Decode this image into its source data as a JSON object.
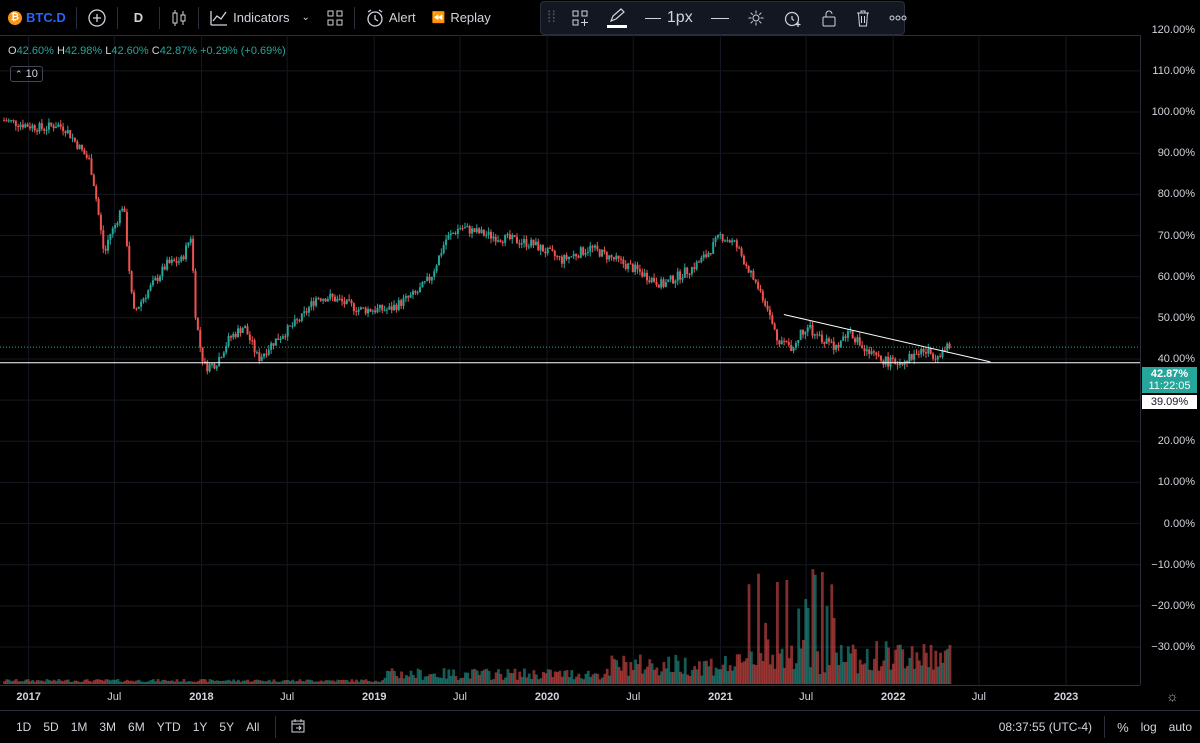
{
  "toolbar": {
    "symbol": "BTC.D",
    "symbol_icon": "bitcoin-icon",
    "add_symbol_icon": "plus-circle-icon",
    "interval": "D",
    "chart_type_icon": "candles-icon",
    "indicators_label": "Indicators",
    "layouts_icon": "grid-icon",
    "alert_label": "Alert",
    "replay_label": "Replay"
  },
  "drawing_toolbar": {
    "line_width_label": "1px"
  },
  "legend": {
    "o_label": "O",
    "o_value": "42.60%",
    "h_label": "H",
    "h_value": "42.98%",
    "l_label": "L",
    "l_value": "42.60%",
    "c_label": "C",
    "c_value": "42.87%",
    "change": "+0.29% (+0.69%)",
    "volume_badge": "10"
  },
  "price_axis": {
    "ticks": [
      "120.00%",
      "110.00%",
      "100.00%",
      "90.00%",
      "80.00%",
      "70.00%",
      "60.00%",
      "50.00%",
      "40.00%",
      "30.00%",
      "20.00%",
      "10.00%",
      "0.00%",
      "−10.00%",
      "−20.00%",
      "−30.00%"
    ],
    "current_price": "42.87%",
    "countdown": "11:22:05",
    "horizontal_line_price": "39.09%"
  },
  "time_axis": {
    "ticks": [
      "2017",
      "Jul",
      "2018",
      "Jul",
      "2019",
      "Jul",
      "2020",
      "Jul",
      "2021",
      "Jul",
      "2022",
      "Jul",
      "2023"
    ]
  },
  "bottom_bar": {
    "ranges": [
      "1D",
      "5D",
      "1M",
      "3M",
      "6M",
      "YTD",
      "1Y",
      "5Y",
      "All"
    ],
    "time": "08:37:55 (UTC-4)",
    "percent": "%",
    "log": "log",
    "auto": "auto"
  },
  "colors": {
    "up": "#26a69a",
    "down": "#ef5350",
    "background": "#000000",
    "accent": "#2962ff"
  },
  "chart_data": {
    "type": "line",
    "title": "BTC.D",
    "series": [
      {
        "x": [
          "2016-11-10",
          "2017-02-01",
          "2017-03-01",
          "2017-03-20",
          "2017-05-10",
          "2017-05-20",
          "2017-06-10",
          "2017-06-20",
          "2017-07-01",
          "2017-07-20",
          "2017-08-10",
          "2017-09-01",
          "2017-10-20",
          "2017-11-20",
          "2017-12-10",
          "2017-12-20",
          "2018-01-01",
          "2018-01-10",
          "2018-02-01",
          "2018-03-01",
          "2018-04-01",
          "2018-05-01",
          "2018-06-01",
          "2018-08-01",
          "2018-09-01",
          "2018-10-01",
          "2018-12-01",
          "2019-02-01",
          "2019-04-01",
          "2019-05-01",
          "2019-06-01",
          "2019-07-01",
          "2019-09-01",
          "2019-12-01",
          "2020-02-01",
          "2020-04-01",
          "2020-07-01",
          "2020-09-01",
          "2020-11-01",
          "2020-12-01",
          "2021-01-01",
          "2021-02-01",
          "2021-03-01",
          "2021-04-01",
          "2021-05-01",
          "2021-06-01",
          "2021-07-01",
          "2021-08-01",
          "2021-09-01",
          "2021-10-01",
          "2021-11-01",
          "2021-12-01",
          "2022-01-01",
          "2022-02-01",
          "2022-03-01",
          "2022-04-01",
          "2022-04-30"
        ],
        "values": [
          98,
          96,
          97,
          96,
          88,
          82,
          65,
          70,
          72,
          78,
          51,
          55,
          63,
          64,
          70,
          50,
          41,
          38,
          39,
          45,
          48,
          40,
          44,
          50,
          55,
          55,
          52,
          52,
          56,
          60,
          69,
          72,
          70,
          68,
          64,
          67,
          62,
          58,
          62,
          65,
          70,
          68,
          62,
          55,
          45,
          43,
          48,
          45,
          43,
          47,
          42,
          40,
          39,
          40,
          42,
          41,
          42.87
        ]
      }
    ],
    "ylim": [
      -33,
      125
    ],
    "volume": "present",
    "annotations": [
      {
        "type": "horizontal_line",
        "value": 39.09
      },
      {
        "type": "trend_line",
        "from": [
          "2021-05-15",
          50.8
        ],
        "to": [
          "2022-07-25",
          39.3
        ]
      }
    ]
  }
}
